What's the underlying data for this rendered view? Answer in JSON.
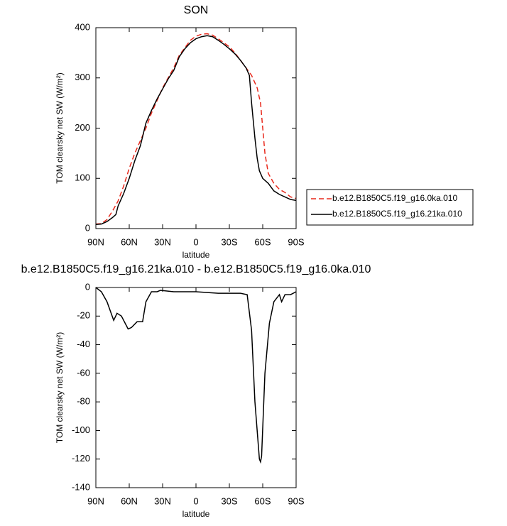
{
  "chart_data": [
    {
      "type": "line",
      "title": "SON",
      "x_label": "latitude",
      "y_label": "TOM clearsky net SW (W/m²)",
      "xlim": [
        90,
        -90
      ],
      "ylim": [
        0,
        400
      ],
      "xticks": [
        {
          "value": 90,
          "label": "90N"
        },
        {
          "value": 60,
          "label": "60N"
        },
        {
          "value": 30,
          "label": "30N"
        },
        0,
        {
          "value": -30,
          "label": "30S"
        },
        {
          "value": -60,
          "label": "60S"
        },
        {
          "value": -90,
          "label": "90S"
        }
      ],
      "yticks": [
        0,
        100,
        200,
        300,
        400
      ],
      "legend": "right",
      "series": [
        {
          "name": "b.e12.B1850C5.f19_g16.0ka.010",
          "color": "#e8291c",
          "dash": true,
          "x": [
            90,
            85,
            80,
            75,
            70,
            65,
            60,
            55,
            50,
            45,
            40,
            35,
            30,
            25,
            20,
            15,
            10,
            5,
            0,
            -5,
            -10,
            -15,
            -20,
            -25,
            -30,
            -35,
            -40,
            -45,
            -50,
            -55,
            -58,
            -60,
            -62,
            -65,
            -70,
            -75,
            -80,
            -85,
            -90
          ],
          "values": [
            9,
            10,
            18,
            35,
            55,
            85,
            120,
            150,
            175,
            200,
            230,
            255,
            280,
            300,
            320,
            345,
            360,
            375,
            383,
            387,
            388,
            385,
            378,
            370,
            362,
            350,
            335,
            320,
            305,
            280,
            250,
            200,
            150,
            110,
            90,
            78,
            72,
            63,
            60
          ]
        },
        {
          "name": "b.e12.B1850C5.f19_g16.21ka.010",
          "color": "#000000",
          "dash": false,
          "x": [
            90,
            85,
            80,
            75,
            72,
            70,
            65,
            60,
            55,
            50,
            45,
            40,
            35,
            30,
            25,
            20,
            15,
            10,
            5,
            0,
            -5,
            -10,
            -15,
            -20,
            -25,
            -30,
            -35,
            -40,
            -45,
            -48,
            -50,
            -53,
            -55,
            -57,
            -60,
            -65,
            -70,
            -75,
            -80,
            -85,
            -90
          ],
          "values": [
            8,
            9,
            14,
            22,
            28,
            45,
            70,
            100,
            135,
            165,
            210,
            235,
            258,
            278,
            298,
            315,
            342,
            358,
            370,
            378,
            382,
            384,
            382,
            375,
            367,
            358,
            348,
            335,
            320,
            305,
            250,
            180,
            140,
            115,
            100,
            90,
            75,
            68,
            63,
            58,
            56
          ]
        }
      ]
    },
    {
      "type": "line",
      "title": "b.e12.B1850C5.f19_g16.21ka.010 - b.e12.B1850C5.f19_g16.0ka.010",
      "x_label": "latitude",
      "y_label": "TOM clearsky net SW (W/m²)",
      "xlim": [
        90,
        -90
      ],
      "ylim": [
        -140,
        0
      ],
      "xticks": [
        {
          "value": 90,
          "label": "90N"
        },
        {
          "value": 60,
          "label": "60N"
        },
        {
          "value": 30,
          "label": "30N"
        },
        0,
        {
          "value": -30,
          "label": "30S"
        },
        {
          "value": -60,
          "label": "60S"
        },
        {
          "value": -90,
          "label": "90S"
        }
      ],
      "yticks": [
        -140,
        -120,
        -100,
        -80,
        -60,
        -40,
        -20,
        0
      ],
      "series": [
        {
          "color": "#000000",
          "dash": false,
          "x": [
            90,
            85,
            80,
            74,
            71,
            67,
            61,
            58,
            53,
            48,
            45,
            40,
            35,
            32,
            20,
            0,
            -20,
            -40,
            -46,
            -50,
            -53,
            -57,
            -58,
            -59,
            -62,
            -66,
            -70,
            -75,
            -77,
            -80,
            -85,
            -90
          ],
          "values": [
            0,
            -3,
            -10,
            -23,
            -18,
            -20,
            -29,
            -28,
            -24,
            -24,
            -10,
            -3,
            -3,
            -2,
            -3,
            -3,
            -4,
            -4,
            -5,
            -30,
            -80,
            -120,
            -122,
            -118,
            -60,
            -25,
            -10,
            -5,
            -10,
            -5,
            -5,
            -3
          ]
        }
      ]
    }
  ]
}
